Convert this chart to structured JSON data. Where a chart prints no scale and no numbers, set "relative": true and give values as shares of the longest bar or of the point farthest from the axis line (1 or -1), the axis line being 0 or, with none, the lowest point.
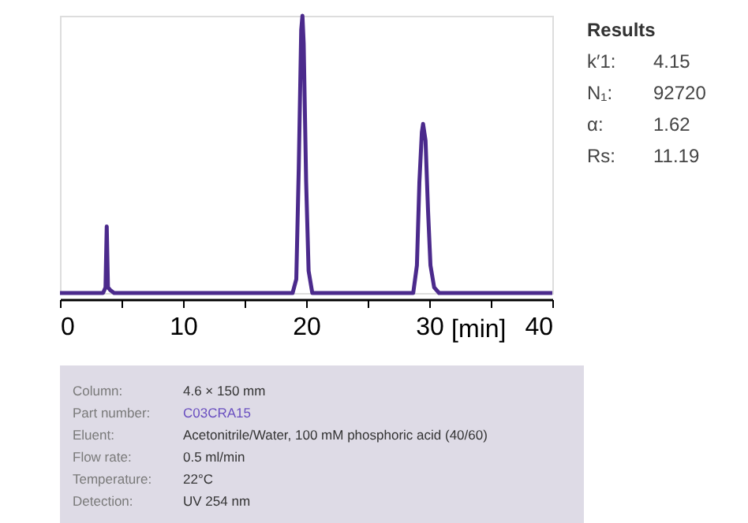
{
  "chart_data": {
    "type": "line",
    "relative": true,
    "xlabel": "[min]",
    "x": [
      0,
      3.5,
      3.7,
      3.8,
      3.9,
      4.1,
      4.4,
      18.9,
      19.2,
      19.4,
      19.6,
      19.7,
      19.8,
      20.0,
      20.2,
      20.5,
      28.7,
      29.0,
      29.2,
      29.4,
      29.5,
      29.7,
      29.9,
      30.1,
      30.4,
      30.8,
      40
    ],
    "series": [
      {
        "color": "#4b2a8c",
        "values": [
          0,
          0,
          0.02,
          0.24,
          0.02,
          0.01,
          0,
          0,
          0.05,
          0.45,
          0.95,
          1,
          0.9,
          0.4,
          0.08,
          0,
          0,
          0.1,
          0.4,
          0.58,
          0.61,
          0.55,
          0.3,
          0.1,
          0.02,
          0,
          0
        ]
      }
    ],
    "xlim": [
      0,
      40
    ],
    "xticks": [
      0,
      {
        "value": 5,
        "label": null
      },
      10,
      {
        "value": 15,
        "label": null
      },
      20,
      {
        "value": 25,
        "label": null
      },
      30,
      {
        "value": 35,
        "label": null
      },
      40
    ],
    "grid": false,
    "annotations": [
      "Results",
      "k′1:",
      "4.15",
      "N₁:",
      "92720",
      "α:",
      "1.62",
      "Rs:",
      "11.19",
      "Column:",
      "4.6 × 150 mm",
      "Part number:",
      "C03CRA15",
      "Eluent:",
      "Acetonitrile/Water, 100 mM phosphoric acid (40/60)",
      "Flow rate:",
      "0.5 ml/min",
      "Temperature:",
      "22°C",
      "Detection:",
      "UV 254 nm"
    ]
  }
}
